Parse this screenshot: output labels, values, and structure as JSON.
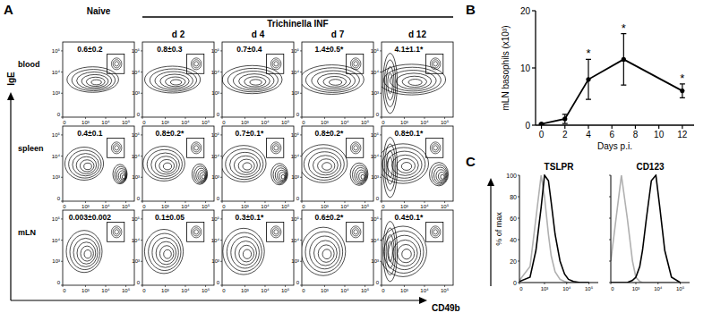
{
  "chart_data": [
    {
      "type": "flow_grid",
      "panel": "A",
      "group_label": "Trichinella INF",
      "columns": [
        "Naive",
        "d 2",
        "d 4",
        "d 7",
        "d 12"
      ],
      "rows": [
        "blood",
        "spleen",
        "mLN"
      ],
      "x_label": "CD49b",
      "y_label": "IgE",
      "xlim": [
        0,
        262144
      ],
      "ylim": [
        0,
        262144
      ],
      "xticks": [
        0,
        {
          "value": 1000,
          "label": "10³"
        },
        {
          "value": 10000,
          "label": "10⁴"
        },
        {
          "value": 100000,
          "label": "10⁵"
        }
      ],
      "yticks": [
        0,
        {
          "value": 1000,
          "label": "10³"
        },
        {
          "value": 10000,
          "label": "10⁴"
        },
        {
          "value": 100000,
          "label": "10⁵"
        }
      ],
      "gate_labels": [
        [
          "0.6±0.2",
          "0.8±0.3",
          "0.7±0.4",
          "1.4±0.5*",
          "4.1±1.1*"
        ],
        [
          "0.4±0.1",
          "0.8±0.2*",
          "0.7±0.1*",
          "0.8±0.2*",
          "0.8±0.1*"
        ],
        [
          "0.003±0.002",
          "0.1±0.05",
          "0.3±0.1*",
          "0.6±0.2*",
          "0.4±0.1*"
        ]
      ]
    },
    {
      "type": "line",
      "panel": "B",
      "x": [
        0,
        2,
        4,
        7,
        12
      ],
      "values": [
        0.2,
        1.1,
        8,
        11.5,
        6
      ],
      "errors": [
        0.1,
        0.8,
        3.5,
        4.5,
        1.2
      ],
      "significance": [
        null,
        null,
        "*",
        "*",
        "*"
      ],
      "xlim": [
        -0.5,
        13
      ],
      "xticks": [
        0,
        2,
        4,
        6,
        8,
        10,
        12
      ],
      "ylim": [
        0,
        20
      ],
      "yticks": [
        0,
        10,
        20
      ],
      "x_label": "Days p.i.",
      "y_label": "mLN basophils (x10³)",
      "color": "#000000",
      "marker": "circle"
    },
    {
      "type": "line",
      "panel": "C",
      "title": "TSLPR",
      "y_label": "% of max",
      "x": [
        0,
        200,
        400,
        700,
        1000,
        1500,
        2000,
        3000,
        5000,
        8000,
        12000,
        20000,
        40000,
        100000
      ],
      "series": [
        {
          "color": "#b0b0b0",
          "values": [
            2,
            15,
            60,
            100,
            80,
            45,
            25,
            10,
            3,
            1,
            0,
            0,
            0,
            0
          ]
        },
        {
          "color": "#000000",
          "values": [
            1,
            5,
            30,
            70,
            100,
            95,
            75,
            45,
            20,
            8,
            3,
            1,
            0,
            0
          ]
        }
      ],
      "xlim": [
        0,
        262144
      ],
      "xticks": [
        0,
        {
          "value": 1000,
          "label": "10³"
        },
        {
          "value": 10000,
          "label": "10⁴"
        },
        {
          "value": 100000,
          "label": "10⁵"
        }
      ],
      "ylim": [
        0,
        100
      ],
      "yticks": [
        0,
        20,
        40,
        60,
        80,
        100
      ]
    },
    {
      "type": "line",
      "title": "CD123",
      "x": [
        0,
        200,
        400,
        700,
        1000,
        1500,
        2000,
        3000,
        5000,
        8000,
        12000,
        20000,
        40000,
        100000
      ],
      "series": [
        {
          "color": "#b0b0b0",
          "values": [
            20,
            100,
            60,
            20,
            5,
            1,
            0,
            0,
            0,
            0,
            0,
            0,
            0,
            0
          ]
        },
        {
          "color": "#000000",
          "values": [
            0,
            0,
            0,
            2,
            5,
            15,
            30,
            60,
            95,
            100,
            70,
            30,
            5,
            0
          ]
        }
      ],
      "xlim": [
        0,
        262144
      ],
      "xticks": [
        0,
        {
          "value": 1000,
          "label": "10³"
        },
        {
          "value": 10000,
          "label": "10⁴"
        },
        {
          "value": 100000,
          "label": "10⁵"
        }
      ],
      "ylim": [
        0,
        100
      ],
      "yticks": [
        0,
        20,
        40,
        60,
        80,
        100
      ],
      "tick_labels": "x"
    }
  ]
}
